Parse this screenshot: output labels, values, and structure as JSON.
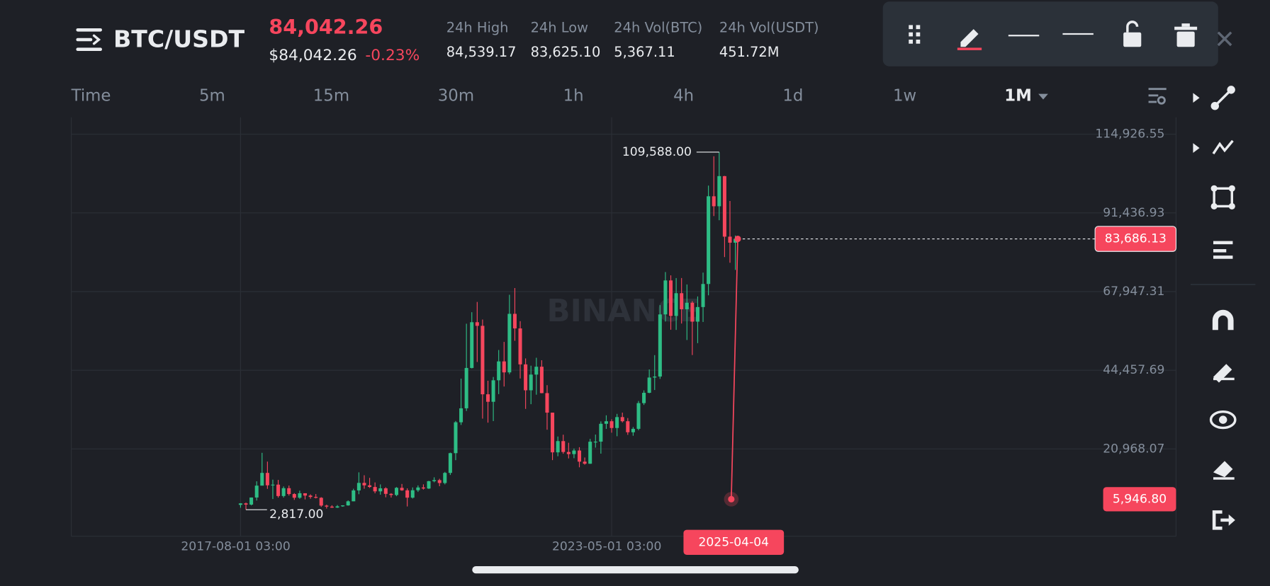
{
  "header": {
    "symbol": "BTC/USDT",
    "last_price": "84,042.26",
    "usd_price": "$84,042.26",
    "change": "-0.23%",
    "stats": [
      {
        "label": "24h High",
        "value": "84,539.17"
      },
      {
        "label": "24h Low",
        "value": "83,625.10"
      },
      {
        "label": "24h Vol(BTC)",
        "value": "5,367.11"
      },
      {
        "label": "24h Vol(USDT)",
        "value": "451.72M"
      }
    ]
  },
  "intervals": [
    "Time",
    "5m",
    "15m",
    "30m",
    "1h",
    "4h",
    "1d",
    "1w",
    "1M"
  ],
  "chart_data": {
    "type": "candlestick",
    "watermark": "BINANCE",
    "x": [
      "2017-08-01",
      "2017-09-01",
      "2017-10-01",
      "2017-11-01",
      "2017-12-01",
      "2018-01-01",
      "2018-02-01",
      "2018-03-01",
      "2018-04-01",
      "2018-05-01",
      "2018-06-01",
      "2018-07-01",
      "2018-08-01",
      "2018-09-01",
      "2018-10-01",
      "2018-11-01",
      "2018-12-01",
      "2019-01-01",
      "2019-02-01",
      "2019-03-01",
      "2019-04-01",
      "2019-05-01",
      "2019-06-01",
      "2019-07-01",
      "2019-08-01",
      "2019-09-01",
      "2019-10-01",
      "2019-11-01",
      "2019-12-01",
      "2020-01-01",
      "2020-02-01",
      "2020-03-01",
      "2020-04-01",
      "2020-05-01",
      "2020-06-01",
      "2020-07-01",
      "2020-08-01",
      "2020-09-01",
      "2020-10-01",
      "2020-11-01",
      "2020-12-01",
      "2021-01-01",
      "2021-02-01",
      "2021-03-01",
      "2021-04-01",
      "2021-05-01",
      "2021-06-01",
      "2021-07-01",
      "2021-08-01",
      "2021-09-01",
      "2021-10-01",
      "2021-11-01",
      "2021-12-01",
      "2022-01-01",
      "2022-02-01",
      "2022-03-01",
      "2022-04-01",
      "2022-05-01",
      "2022-06-01",
      "2022-07-01",
      "2022-08-01",
      "2022-09-01",
      "2022-10-01",
      "2022-11-01",
      "2022-12-01",
      "2023-01-01",
      "2023-02-01",
      "2023-03-01",
      "2023-04-01",
      "2023-05-01",
      "2023-06-01",
      "2023-07-01",
      "2023-08-01",
      "2023-09-01",
      "2023-10-01",
      "2023-11-01",
      "2023-12-01",
      "2024-01-01",
      "2024-02-01",
      "2024-03-01",
      "2024-04-01",
      "2024-05-01",
      "2024-06-01",
      "2024-07-01",
      "2024-08-01",
      "2024-09-01",
      "2024-10-01",
      "2024-11-01",
      "2024-12-01",
      "2025-01-01",
      "2025-02-01",
      "2025-03-01",
      "2025-04-01"
    ],
    "open": [
      4261,
      4700,
      4340,
      6450,
      10000,
      13800,
      10100,
      10300,
      6900,
      9240,
      7490,
      6390,
      7730,
      7030,
      6630,
      6370,
      4040,
      3740,
      3440,
      3820,
      4100,
      5320,
      8570,
      10820,
      10090,
      9600,
      8290,
      9200,
      7540,
      7200,
      9350,
      8600,
      6410,
      8620,
      9450,
      9140,
      11330,
      11650,
      10780,
      13800,
      19700,
      28920,
      33090,
      45140,
      58800,
      57720,
      37280,
      35040,
      41460,
      47100,
      43820,
      61300,
      56950,
      46210,
      38470,
      43160,
      45510,
      37630,
      31800,
      19940,
      23300,
      20050,
      19420,
      20490,
      17160,
      16540,
      23120,
      23140,
      28470,
      29230,
      27210,
      30470,
      29230,
      25940,
      26960,
      34640,
      37720,
      42280,
      42580,
      61130,
      71280,
      60670,
      67470,
      62670,
      64620,
      58970,
      63330,
      70220,
      96410,
      93430,
      102430,
      84350,
      82550
    ],
    "high": [
      4745,
      4939,
      6470,
      11300,
      19798,
      17176,
      11786,
      11710,
      9765,
      10020,
      7760,
      8507,
      7500,
      7400,
      7489,
      6555,
      4310,
      4140,
      4198,
      4140,
      5600,
      9074,
      13970,
      13100,
      12326,
      10954,
      10370,
      9513,
      7750,
      9578,
      10500,
      9188,
      9460,
      10067,
      10380,
      11444,
      12486,
      12050,
      14100,
      19863,
      29300,
      41950,
      58352,
      61788,
      64854,
      59592,
      41330,
      42448,
      50500,
      52920,
      67000,
      69000,
      59120,
      47990,
      45821,
      48190,
      47444,
      40000,
      31780,
      24668,
      25211,
      22800,
      21085,
      21480,
      18400,
      23960,
      25250,
      29190,
      31000,
      29820,
      31431,
      31804,
      30188,
      27488,
      35280,
      38450,
      44700,
      48970,
      63913,
      73777,
      72797,
      71979,
      71997,
      70079,
      65100,
      66500,
      73620,
      99588,
      108353,
      109588,
      102500,
      95000,
      84700
    ],
    "low": [
      3400,
      2817,
      4110,
      5555,
      10700,
      9035,
      6000,
      6430,
      6430,
      7034,
      5750,
      6070,
      5880,
      6100,
      6180,
      3652,
      3156,
      3349,
      3346,
      3700,
      4000,
      5330,
      7440,
      9070,
      9320,
      7710,
      7300,
      6515,
      6435,
      6854,
      8450,
      3782,
      6150,
      8117,
      8830,
      9000,
      11000,
      9825,
      10374,
      13195,
      17600,
      28130,
      32296,
      45000,
      46930,
      30000,
      28805,
      29278,
      37330,
      39600,
      43280,
      53256,
      42000,
      32917,
      34322,
      37155,
      37578,
      26700,
      17622,
      18781,
      19520,
      18125,
      18190,
      15476,
      16256,
      16500,
      21351,
      19549,
      26942,
      25811,
      24750,
      28861,
      25166,
      24901,
      26538,
      34097,
      37600,
      38555,
      41884,
      59005,
      56552,
      56500,
      58402,
      53485,
      49000,
      52550,
      58874,
      66835,
      90500,
      89256,
      78258,
      76555,
      74420
    ],
    "close": [
      4700,
      4340,
      6450,
      10000,
      13800,
      10100,
      10300,
      6900,
      9240,
      7490,
      6390,
      7730,
      7030,
      6630,
      6370,
      4040,
      3740,
      3440,
      3820,
      4100,
      5320,
      8570,
      10820,
      10090,
      9600,
      8290,
      9200,
      7540,
      7200,
      9350,
      8600,
      6410,
      8620,
      9450,
      9140,
      11330,
      11650,
      10780,
      13800,
      19700,
      28920,
      33090,
      45140,
      58800,
      57720,
      37280,
      35040,
      41460,
      47100,
      43820,
      61300,
      56950,
      46210,
      38470,
      43160,
      45510,
      37630,
      31800,
      19940,
      23300,
      20050,
      19420,
      20490,
      17160,
      16540,
      23120,
      23140,
      28470,
      29230,
      27210,
      30470,
      29230,
      25940,
      26960,
      34640,
      37720,
      42280,
      42580,
      61130,
      71280,
      60670,
      67470,
      62670,
      64620,
      58970,
      63330,
      70220,
      96410,
      93430,
      102430,
      84350,
      82550,
      83686.13
    ],
    "up_color": "#2ebd85",
    "down_color": "#f6465d",
    "ylim": [
      -5118,
      120000
    ],
    "yticks": [
      {
        "value": 20968.07,
        "label": "20,968.07"
      },
      {
        "value": 44457.69,
        "label": "44,457.69"
      },
      {
        "value": 67947.31,
        "label": "67,947.31"
      },
      {
        "value": 91436.93,
        "label": "91,436.93"
      },
      {
        "value": 114926.55,
        "label": "114,926.55"
      }
    ],
    "xticks": [
      {
        "value": "2017-08-01",
        "label": "2017-08-01 03:00"
      },
      {
        "value": "2023-05-01",
        "label": "2023-05-01 03:00"
      }
    ],
    "grid": true,
    "annotations": [
      {
        "value": 109588,
        "label": "109,588.00",
        "kind": "max"
      },
      {
        "value": 2817,
        "label": "2,817.00",
        "kind": "min"
      }
    ],
    "price_line": {
      "value": 83686.13,
      "label": "83,686.13"
    },
    "trend_line_end": {
      "value": 5946.8,
      "label": "5,946.80"
    },
    "crosshair_date": "2025-04-04"
  }
}
